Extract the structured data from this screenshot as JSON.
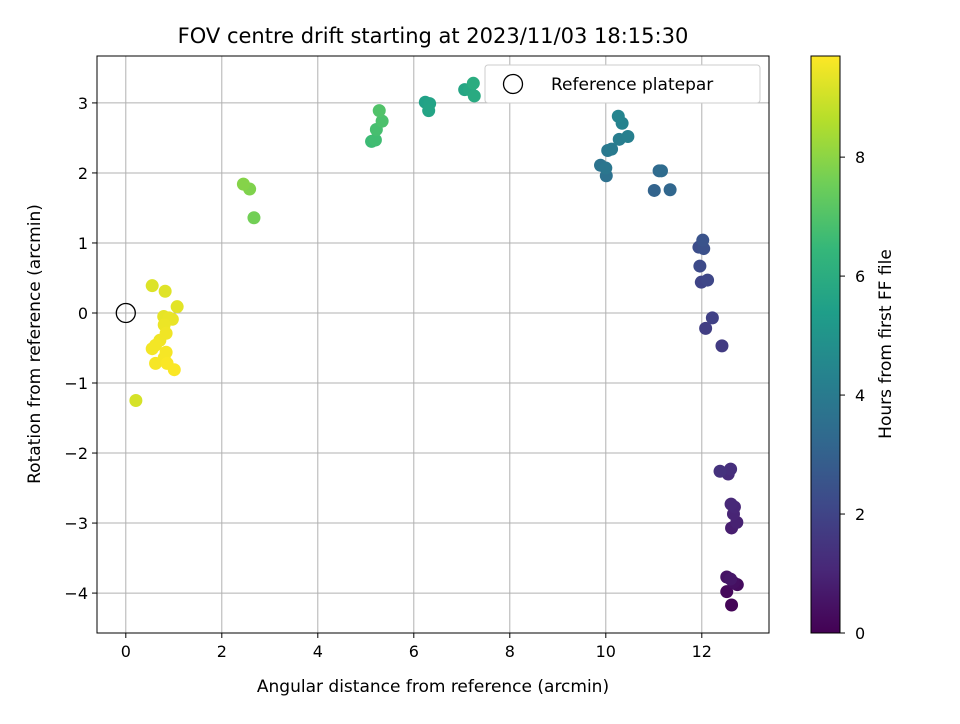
{
  "chart_data": {
    "type": "scatter",
    "title": "FOV centre drift starting at 2023/11/03 18:15:30",
    "xlabel": "Angular distance from reference (arcmin)",
    "ylabel": "Rotation from reference (arcmin)",
    "xlim": [
      -0.6,
      13.4
    ],
    "ylim": [
      -4.57,
      3.67
    ],
    "x_ticks": [
      0,
      2,
      4,
      6,
      8,
      10,
      12
    ],
    "y_ticks": [
      -4,
      -3,
      -2,
      -1,
      0,
      1,
      2,
      3
    ],
    "grid": true,
    "legend": {
      "position": "top-right",
      "entries": [
        "Reference platepar"
      ]
    },
    "reference_point": {
      "name": "Reference platepar",
      "x": 0,
      "y": 0
    },
    "colorbar": {
      "label": "Hours from first FF file",
      "colormap": "viridis",
      "range": [
        0,
        9.7
      ],
      "ticks": [
        0,
        2,
        4,
        6,
        8
      ],
      "colors": [
        "#440154",
        "#482878",
        "#3e4989",
        "#31688e",
        "#26828e",
        "#1f9e89",
        "#35b779",
        "#6ece58",
        "#b5de2b",
        "#fde725"
      ]
    },
    "series": [
      {
        "points": [
          {
            "x": 12.62,
            "y": -4.17,
            "h": 0.1
          },
          {
            "x": 12.52,
            "y": -3.98,
            "h": 0.2
          },
          {
            "x": 12.74,
            "y": -3.88,
            "h": 0.3
          },
          {
            "x": 12.66,
            "y": -3.85,
            "h": 0.4
          },
          {
            "x": 12.52,
            "y": -3.77,
            "h": 0.5
          },
          {
            "x": 12.6,
            "y": -3.8,
            "h": 0.6
          },
          {
            "x": 12.62,
            "y": -3.07,
            "h": 0.8
          },
          {
            "x": 12.73,
            "y": -2.99,
            "h": 0.9
          },
          {
            "x": 12.66,
            "y": -2.87,
            "h": 1.0
          },
          {
            "x": 12.68,
            "y": -2.77,
            "h": 1.05
          },
          {
            "x": 12.61,
            "y": -2.73,
            "h": 1.1
          },
          {
            "x": 12.55,
            "y": -2.3,
            "h": 1.2
          },
          {
            "x": 12.6,
            "y": -2.23,
            "h": 1.3
          },
          {
            "x": 12.38,
            "y": -2.26,
            "h": 1.4
          },
          {
            "x": 12.42,
            "y": -0.47,
            "h": 1.7
          },
          {
            "x": 12.08,
            "y": -0.22,
            "h": 1.8
          },
          {
            "x": 12.22,
            "y": -0.07,
            "h": 1.9
          },
          {
            "x": 11.99,
            "y": 0.44,
            "h": 2.0
          },
          {
            "x": 12.12,
            "y": 0.47,
            "h": 2.1
          },
          {
            "x": 11.96,
            "y": 0.67,
            "h": 2.2
          },
          {
            "x": 11.94,
            "y": 0.94,
            "h": 2.3
          },
          {
            "x": 12.04,
            "y": 0.92,
            "h": 2.4
          },
          {
            "x": 12.02,
            "y": 1.04,
            "h": 2.5
          },
          {
            "x": 11.01,
            "y": 1.75,
            "h": 3.1
          },
          {
            "x": 11.34,
            "y": 1.76,
            "h": 3.2
          },
          {
            "x": 11.11,
            "y": 2.03,
            "h": 3.3
          },
          {
            "x": 11.16,
            "y": 2.03,
            "h": 3.4
          },
          {
            "x": 10.01,
            "y": 1.96,
            "h": 3.6
          },
          {
            "x": 9.89,
            "y": 2.11,
            "h": 3.7
          },
          {
            "x": 10.0,
            "y": 2.07,
            "h": 3.8
          },
          {
            "x": 10.04,
            "y": 2.32,
            "h": 3.9
          },
          {
            "x": 10.12,
            "y": 2.34,
            "h": 4.0
          },
          {
            "x": 10.28,
            "y": 2.48,
            "h": 4.1
          },
          {
            "x": 10.46,
            "y": 2.52,
            "h": 4.2
          },
          {
            "x": 10.34,
            "y": 2.71,
            "h": 4.3
          },
          {
            "x": 10.26,
            "y": 2.81,
            "h": 4.4
          },
          {
            "x": 6.24,
            "y": 3.01,
            "h": 5.5
          },
          {
            "x": 6.33,
            "y": 2.99,
            "h": 5.6
          },
          {
            "x": 6.31,
            "y": 2.89,
            "h": 5.65
          },
          {
            "x": 7.06,
            "y": 3.19,
            "h": 5.7
          },
          {
            "x": 7.16,
            "y": 3.19,
            "h": 5.8
          },
          {
            "x": 7.26,
            "y": 3.1,
            "h": 5.9
          },
          {
            "x": 7.24,
            "y": 3.28,
            "h": 6.0
          },
          {
            "x": 5.12,
            "y": 2.45,
            "h": 6.6
          },
          {
            "x": 5.2,
            "y": 2.47,
            "h": 6.7
          },
          {
            "x": 5.22,
            "y": 2.62,
            "h": 6.8
          },
          {
            "x": 5.34,
            "y": 2.74,
            "h": 6.9
          },
          {
            "x": 5.28,
            "y": 2.89,
            "h": 7.0
          },
          {
            "x": 2.67,
            "y": 1.36,
            "h": 7.6
          },
          {
            "x": 2.58,
            "y": 1.77,
            "h": 7.8
          },
          {
            "x": 2.45,
            "y": 1.84,
            "h": 7.9
          },
          {
            "x": 0.21,
            "y": -1.25,
            "h": 9.1
          },
          {
            "x": 0.55,
            "y": 0.39,
            "h": 9.2
          },
          {
            "x": 0.82,
            "y": 0.31,
            "h": 9.25
          },
          {
            "x": 1.07,
            "y": 0.09,
            "h": 9.3
          },
          {
            "x": 0.79,
            "y": -0.05,
            "h": 9.35
          },
          {
            "x": 0.9,
            "y": -0.07,
            "h": 9.4
          },
          {
            "x": 0.97,
            "y": -0.09,
            "h": 9.4
          },
          {
            "x": 0.8,
            "y": -0.17,
            "h": 9.45
          },
          {
            "x": 0.84,
            "y": -0.29,
            "h": 9.5
          },
          {
            "x": 0.71,
            "y": -0.39,
            "h": 9.5
          },
          {
            "x": 0.62,
            "y": -0.46,
            "h": 9.55
          },
          {
            "x": 0.55,
            "y": -0.51,
            "h": 9.55
          },
          {
            "x": 0.84,
            "y": -0.56,
            "h": 9.6
          },
          {
            "x": 0.8,
            "y": -0.64,
            "h": 9.6
          },
          {
            "x": 0.62,
            "y": -0.72,
            "h": 9.6
          },
          {
            "x": 0.86,
            "y": -0.72,
            "h": 9.65
          },
          {
            "x": 1.01,
            "y": -0.81,
            "h": 9.65
          }
        ]
      }
    ]
  }
}
